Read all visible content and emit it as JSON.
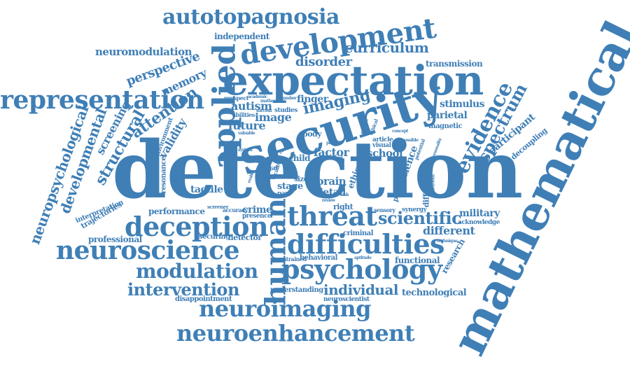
{
  "color": "#3f7fb6",
  "words": [
    "detection",
    "mathematical",
    "security",
    "expectation",
    "applied",
    "development",
    "autotopagnosia",
    "representation",
    "neuroscience",
    "deception",
    "threat",
    "difficulties",
    "psychology",
    "human",
    "neuroimaging",
    "neuroenhancement",
    "modulation",
    "intervention",
    "curriculum",
    "scientific",
    "individual",
    "evidence",
    "spectrum",
    "neuropsychological",
    "developmental",
    "structural",
    "screening",
    "attention",
    "imaging",
    "perspective",
    "memory",
    "neuromodulation",
    "independent",
    "disorder",
    "transmission",
    "stimulus",
    "parietal",
    "magnetic",
    "participant",
    "decoupling",
    "school",
    "future",
    "autism",
    "image",
    "finger",
    "validity",
    "environment",
    "factor",
    "brain",
    "detail",
    "stage",
    "tactile",
    "resonance",
    "performance",
    "crime",
    "presence",
    "detector",
    "securing",
    "professional",
    "trajectories",
    "interpretation",
    "different",
    "military",
    "acknowledge",
    "research",
    "criminal",
    "behavioral",
    "functional",
    "technological",
    "understanding",
    "neuroscientist",
    "disappointment",
    "untrained",
    "difference",
    "synergy",
    "sensory",
    "practical",
    "science",
    "ethic",
    "current",
    "right",
    "child",
    "body",
    "legal",
    "hand",
    "size",
    "part",
    "visual",
    "article",
    "abilities",
    "success",
    "studies",
    "prospect",
    "academic",
    "possible",
    "potential",
    "tool",
    "task",
    "concept",
    "personality",
    "mathematic",
    "valuable",
    "system",
    "predict",
    "review",
    "accuracy",
    "screener",
    "aptitude",
    "technique",
    "courtroom",
    "number",
    "general",
    "ethical",
    "cortex",
    "context",
    "scale",
    "reality"
  ]
}
